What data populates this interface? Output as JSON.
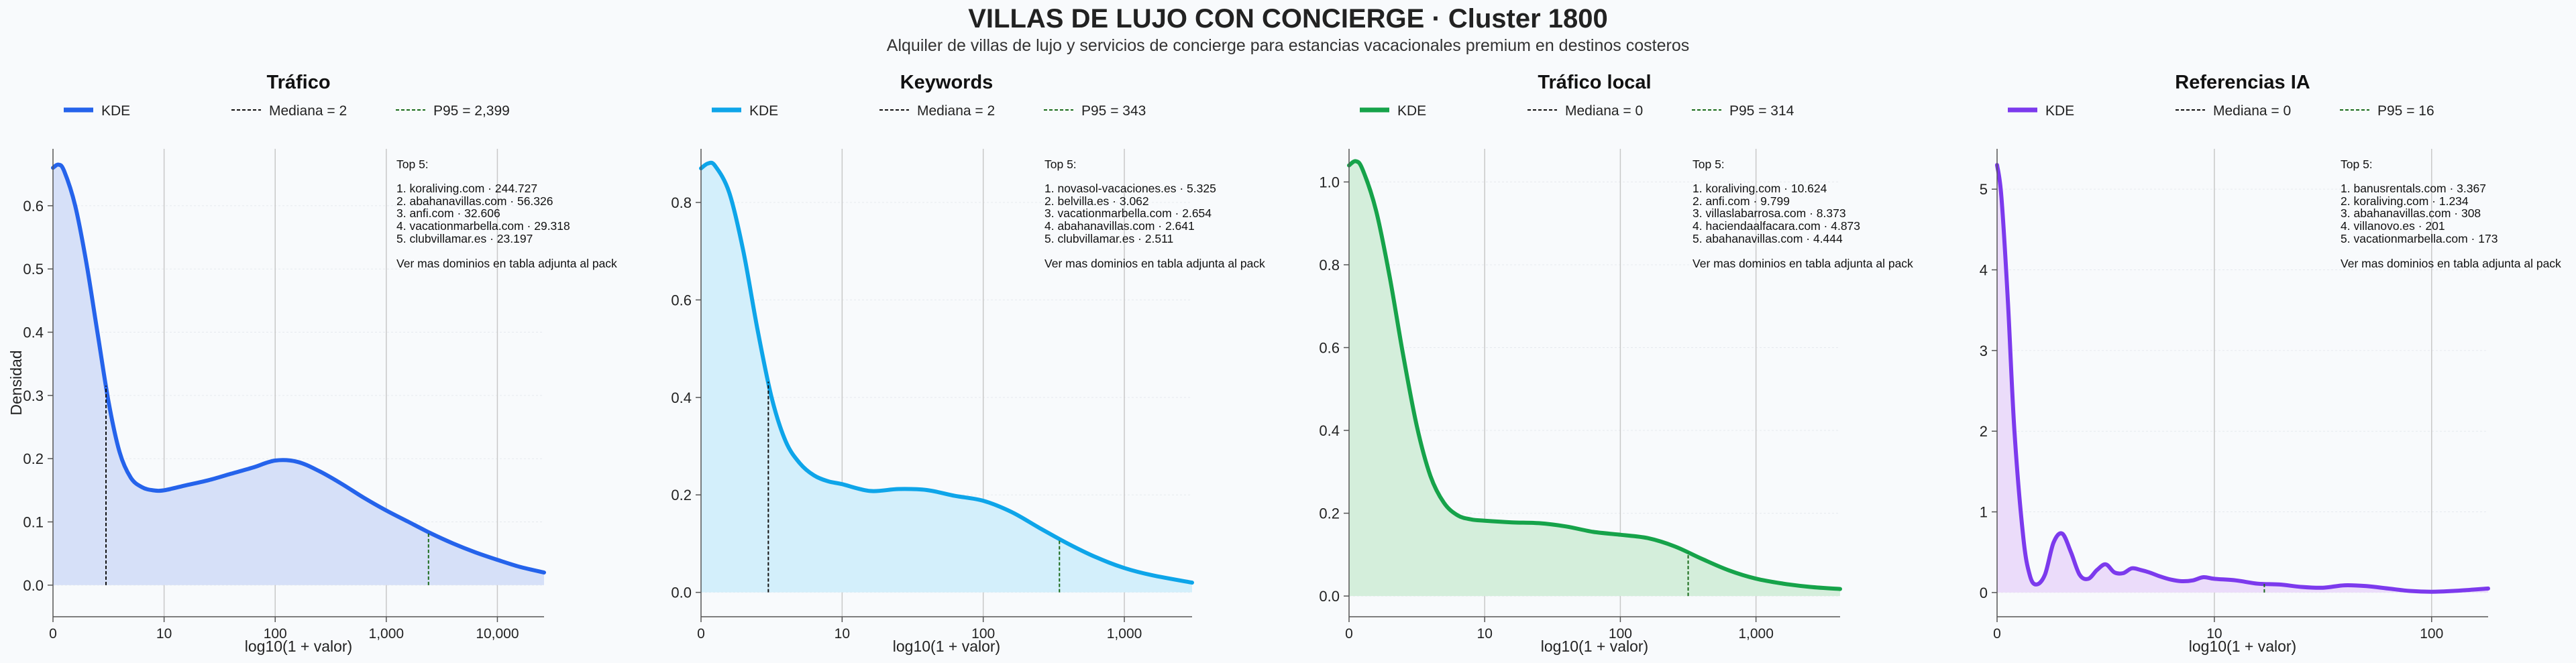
{
  "header": {
    "title": "VILLAS DE LUJO CON CONCIERGE · Cluster 1800",
    "subtitle": "Alquiler de villas de lujo y servicios de concierge para estancias vacacionales premium en destinos costeros"
  },
  "chart_data": [
    {
      "type": "area",
      "title": "Tráfico",
      "xlabel": "log10(1 + valor)",
      "ylabel": "Densidad",
      "xlim": [
        0,
        4.42
      ],
      "ylim": [
        -0.05,
        0.69
      ],
      "x_ticks": [
        0,
        1,
        2,
        3,
        4
      ],
      "x_tick_labels": [
        "0",
        "10",
        "100",
        "1,000",
        "10,000"
      ],
      "y_ticks": [
        0,
        0.1,
        0.2,
        0.3,
        0.4,
        0.5,
        0.6
      ],
      "y_tick_labels": [
        "0.0",
        "0.1",
        "0.2",
        "0.3",
        "0.4",
        "0.5",
        "0.6"
      ],
      "color": "#2563eb",
      "fill": "#d6e0f8",
      "legend": [
        "KDE",
        "Mediana = 2",
        "P95 = 2,399"
      ],
      "median": 0.477,
      "p95": 3.38,
      "series": [
        {
          "name": "KDE",
          "x": [
            0,
            0.05,
            0.1,
            0.2,
            0.3,
            0.4,
            0.5,
            0.6,
            0.7,
            0.8,
            0.9,
            1.0,
            1.2,
            1.4,
            1.6,
            1.8,
            2.0,
            2.2,
            2.4,
            2.6,
            2.8,
            3.0,
            3.2,
            3.4,
            3.6,
            3.8,
            4.0,
            4.2,
            4.42
          ],
          "y": [
            0.66,
            0.665,
            0.655,
            0.6,
            0.51,
            0.4,
            0.29,
            0.21,
            0.17,
            0.155,
            0.15,
            0.15,
            0.158,
            0.166,
            0.176,
            0.186,
            0.197,
            0.195,
            0.18,
            0.16,
            0.138,
            0.118,
            0.1,
            0.082,
            0.066,
            0.052,
            0.04,
            0.029,
            0.02
          ]
        }
      ],
      "annotation": [
        "Top 5:",
        "",
        "1. koraliving.com · 244.727",
        "2. abahanavillas.com · 56.326",
        "3. anfi.com · 32.606",
        "4. vacationmarbella.com · 29.318",
        "5. clubvillamar.es · 23.197",
        "",
        "Ver mas dominios en tabla adjunta al pack"
      ]
    },
    {
      "type": "area",
      "title": "Keywords",
      "xlabel": "log10(1 + valor)",
      "ylabel": "",
      "xlim": [
        0,
        3.48
      ],
      "ylim": [
        -0.05,
        0.91
      ],
      "x_ticks": [
        0,
        1,
        2,
        3
      ],
      "x_tick_labels": [
        "0",
        "10",
        "100",
        "1,000"
      ],
      "y_ticks": [
        0,
        0.2,
        0.4,
        0.6,
        0.8
      ],
      "y_tick_labels": [
        "0.0",
        "0.2",
        "0.4",
        "0.6",
        "0.8"
      ],
      "color": "#0ea5e9",
      "fill": "#d3effb",
      "legend": [
        "KDE",
        "Mediana = 2",
        "P95 = 343"
      ],
      "median": 0.477,
      "p95": 2.54,
      "series": [
        {
          "name": "KDE",
          "x": [
            0,
            0.05,
            0.1,
            0.2,
            0.3,
            0.4,
            0.5,
            0.6,
            0.7,
            0.8,
            0.9,
            1.0,
            1.2,
            1.4,
            1.6,
            1.8,
            2.0,
            2.2,
            2.4,
            2.6,
            2.8,
            3.0,
            3.2,
            3.48
          ],
          "y": [
            0.87,
            0.88,
            0.875,
            0.82,
            0.7,
            0.54,
            0.4,
            0.31,
            0.265,
            0.24,
            0.228,
            0.222,
            0.208,
            0.212,
            0.21,
            0.198,
            0.188,
            0.165,
            0.132,
            0.1,
            0.072,
            0.05,
            0.035,
            0.02
          ]
        }
      ],
      "annotation": [
        "Top 5:",
        "",
        "1. novasol-vacaciones.es · 5.325",
        "2. belvilla.es · 3.062",
        "3. vacationmarbella.com · 2.654",
        "4. abahanavillas.com · 2.641",
        "5. clubvillamar.es · 2.511",
        "",
        "Ver mas dominios en tabla adjunta al pack"
      ]
    },
    {
      "type": "area",
      "title": "Tráfico local",
      "xlabel": "log10(1 + valor)",
      "ylabel": "",
      "xlim": [
        0,
        3.62
      ],
      "ylim": [
        -0.05,
        1.08
      ],
      "x_ticks": [
        0,
        1,
        2,
        3
      ],
      "x_tick_labels": [
        "0",
        "10",
        "100",
        "1,000"
      ],
      "y_ticks": [
        0,
        0.2,
        0.4,
        0.6,
        0.8,
        1.0
      ],
      "y_tick_labels": [
        "0.0",
        "0.2",
        "0.4",
        "0.6",
        "0.8",
        "1.0"
      ],
      "color": "#16a34a",
      "fill": "#d4eedb",
      "legend": [
        "KDE",
        "Mediana = 0",
        "P95 = 314"
      ],
      "median": 0,
      "p95": 2.5,
      "series": [
        {
          "name": "KDE",
          "x": [
            0,
            0.05,
            0.1,
            0.2,
            0.3,
            0.4,
            0.5,
            0.6,
            0.7,
            0.8,
            0.9,
            1.0,
            1.2,
            1.4,
            1.6,
            1.8,
            2.0,
            2.2,
            2.4,
            2.6,
            2.8,
            3.0,
            3.2,
            3.4,
            3.62
          ],
          "y": [
            1.04,
            1.05,
            1.03,
            0.93,
            0.77,
            0.58,
            0.41,
            0.29,
            0.225,
            0.195,
            0.185,
            0.182,
            0.178,
            0.176,
            0.168,
            0.155,
            0.148,
            0.14,
            0.12,
            0.09,
            0.062,
            0.042,
            0.03,
            0.022,
            0.017
          ]
        }
      ],
      "annotation": [
        "Top 5:",
        "",
        "1. koraliving.com · 10.624",
        "2. anfi.com · 9.799",
        "3. villaslabarrosa.com · 8.373",
        "4. haciendaalfacara.com · 4.873",
        "5. abahanavillas.com · 4.444",
        "",
        "Ver mas dominios en tabla adjunta al pack"
      ]
    },
    {
      "type": "area",
      "title": "Referencias IA",
      "xlabel": "log10(1 + valor)",
      "ylabel": "",
      "xlim": [
        0,
        2.26
      ],
      "ylim": [
        -0.3,
        5.5
      ],
      "x_ticks": [
        0,
        1,
        2
      ],
      "x_tick_labels": [
        "0",
        "10",
        "100"
      ],
      "y_ticks": [
        0,
        1,
        2,
        3,
        4,
        5
      ],
      "y_tick_labels": [
        "0",
        "1",
        "2",
        "3",
        "4",
        "5"
      ],
      "color": "#7c3aed",
      "fill": "#ebdcfa",
      "legend": [
        "KDE",
        "Mediana = 0",
        "P95 = 16"
      ],
      "median": 0,
      "p95": 1.23,
      "series": [
        {
          "name": "KDE",
          "x": [
            0,
            0.02,
            0.05,
            0.08,
            0.12,
            0.15,
            0.18,
            0.22,
            0.26,
            0.3,
            0.34,
            0.38,
            0.42,
            0.46,
            0.5,
            0.54,
            0.58,
            0.62,
            0.66,
            0.7,
            0.75,
            0.8,
            0.85,
            0.9,
            0.95,
            1.0,
            1.1,
            1.2,
            1.3,
            1.4,
            1.5,
            1.6,
            1.7,
            1.8,
            1.9,
            2.0,
            2.1,
            2.26
          ],
          "y": [
            5.3,
            4.9,
            3.6,
            2.0,
            0.7,
            0.22,
            0.1,
            0.22,
            0.62,
            0.73,
            0.5,
            0.22,
            0.17,
            0.28,
            0.35,
            0.25,
            0.24,
            0.3,
            0.28,
            0.25,
            0.2,
            0.16,
            0.14,
            0.15,
            0.19,
            0.17,
            0.15,
            0.11,
            0.1,
            0.07,
            0.06,
            0.09,
            0.08,
            0.05,
            0.02,
            0.01,
            0.02,
            0.05
          ]
        }
      ],
      "annotation": [
        "Top 5:",
        "",
        "1. banusrentals.com · 3.367",
        "2. koraliving.com · 1.234",
        "3. abahanavillas.com · 308",
        "4. villanovo.es · 201",
        "5. vacationmarbella.com · 173",
        "",
        "Ver mas dominios en tabla adjunta al pack"
      ]
    }
  ]
}
